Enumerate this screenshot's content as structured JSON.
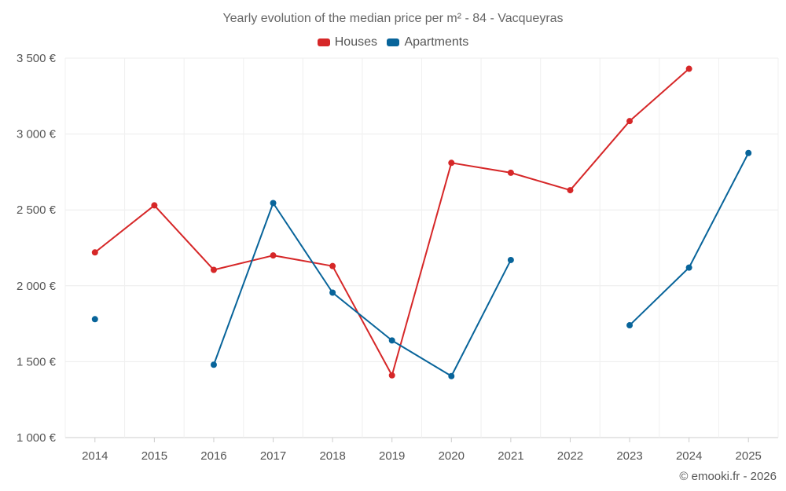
{
  "chart_data": {
    "type": "line",
    "title": "Yearly evolution of the median price per m² - 84 - Vacqueyras",
    "categories": [
      "2014",
      "2015",
      "2016",
      "2017",
      "2018",
      "2019",
      "2020",
      "2021",
      "2022",
      "2023",
      "2024",
      "2025"
    ],
    "ylim": [
      1000,
      3500
    ],
    "yticks": [
      1000,
      1500,
      2000,
      2500,
      3000,
      3500
    ],
    "ytick_labels": [
      "1 000 €",
      "1 500 €",
      "2 000 €",
      "2 500 €",
      "3 000 €",
      "3 500 €"
    ],
    "xlabel": "",
    "ylabel": "",
    "grid": true,
    "legend_position": "top-center",
    "series": [
      {
        "name": "Houses",
        "color": "#d62728",
        "values": [
          2220,
          2530,
          2105,
          2200,
          2130,
          1410,
          2810,
          2745,
          2630,
          3085,
          3430,
          null
        ]
      },
      {
        "name": "Apartments",
        "color": "#08649a",
        "values": [
          1780,
          null,
          1480,
          2545,
          1955,
          1640,
          1405,
          2170,
          null,
          1740,
          2120,
          2875
        ]
      }
    ]
  },
  "footer": {
    "copyright": "© emooki.fr - 2026"
  }
}
